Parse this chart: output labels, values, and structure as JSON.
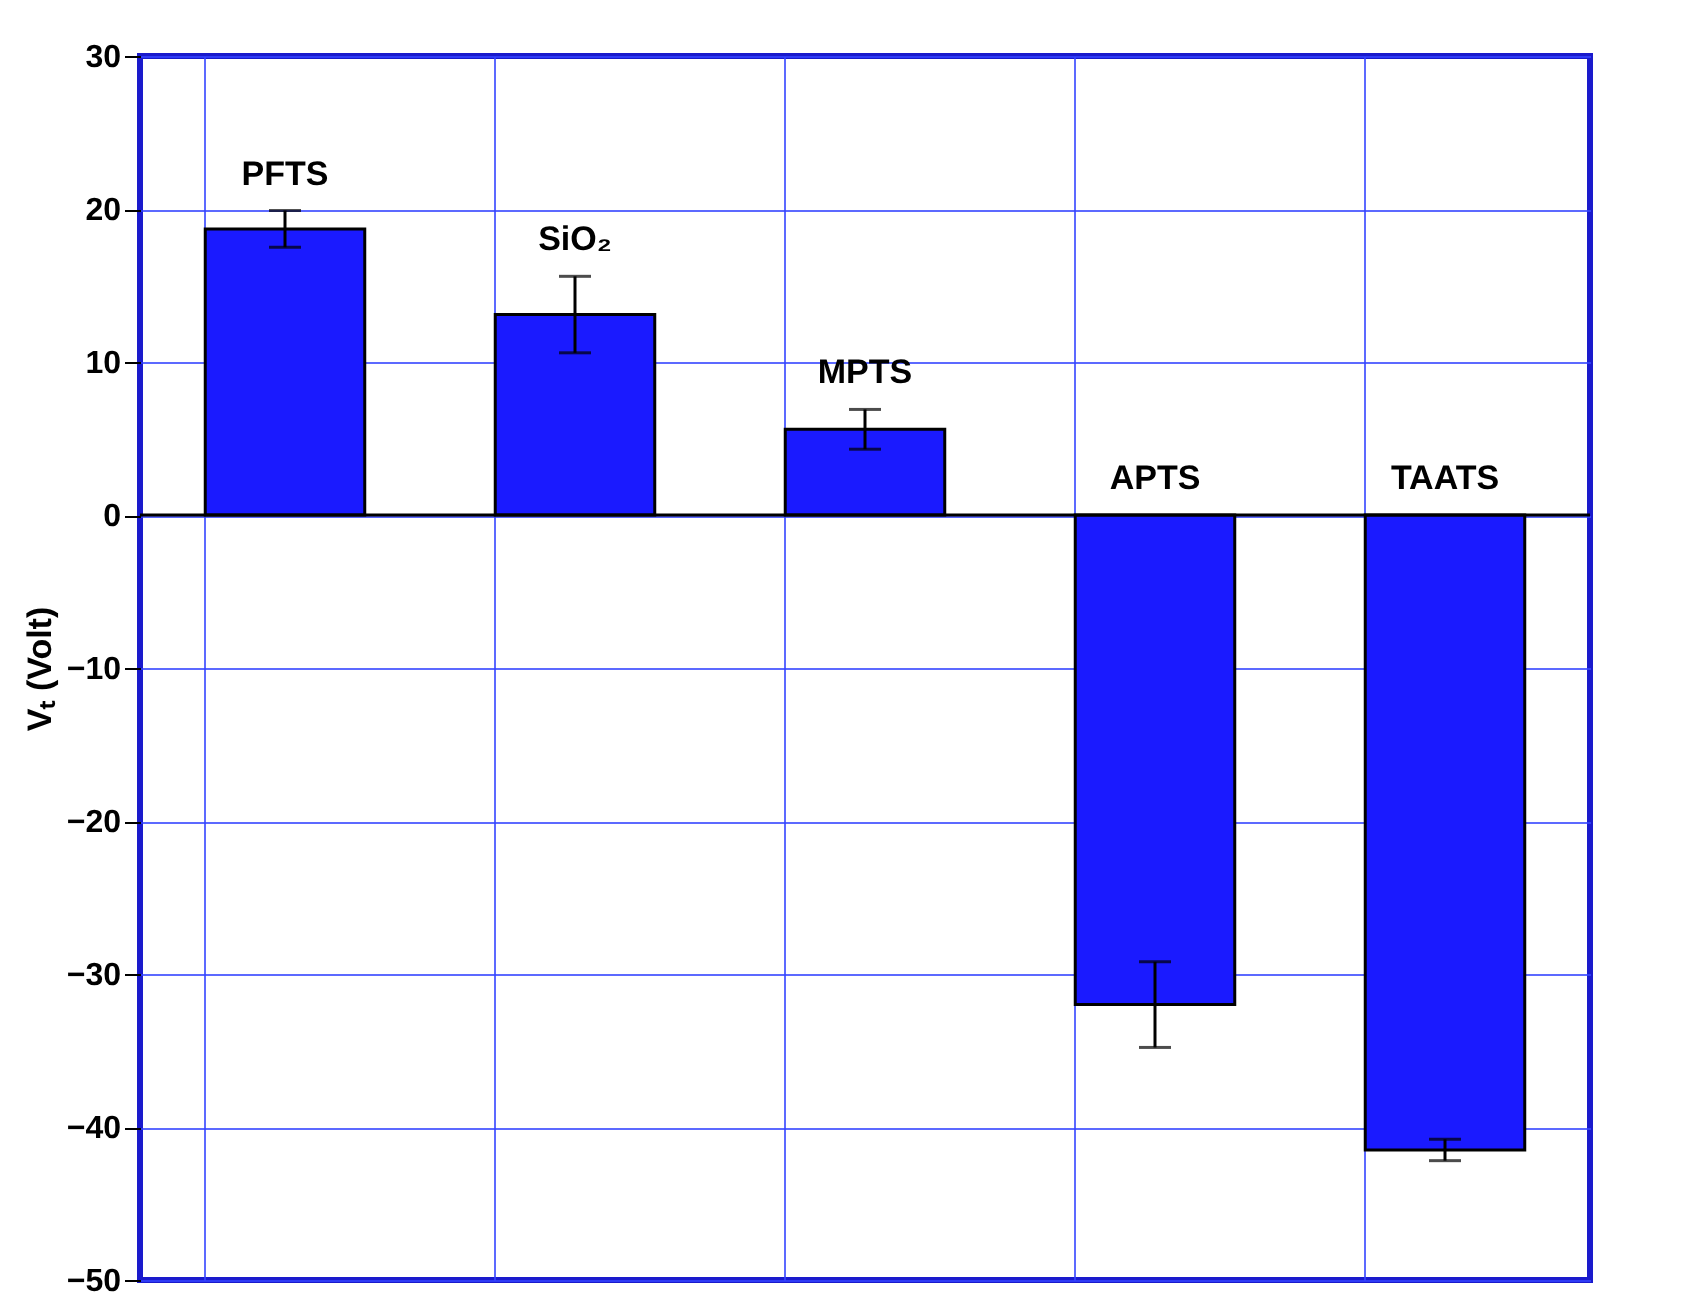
{
  "chart_data": {
    "type": "bar",
    "ylabel": "Vₜ (Volt)",
    "categories": [
      "PFTS",
      "SiO₂",
      "MPTS",
      "APTS",
      "TAATS"
    ],
    "series": [
      {
        "color": "#1a1aff",
        "values": [
          18.7,
          13.1,
          5.6,
          -32.0,
          -41.5
        ],
        "errors": [
          1.2,
          2.5,
          1.3,
          2.8,
          0.7
        ]
      }
    ],
    "ylim": [
      -50,
      30
    ],
    "yticks": [
      -50,
      -40,
      -30,
      -20,
      -10,
      0,
      10,
      20,
      30
    ],
    "grid": true,
    "tick_labels": "y"
  }
}
